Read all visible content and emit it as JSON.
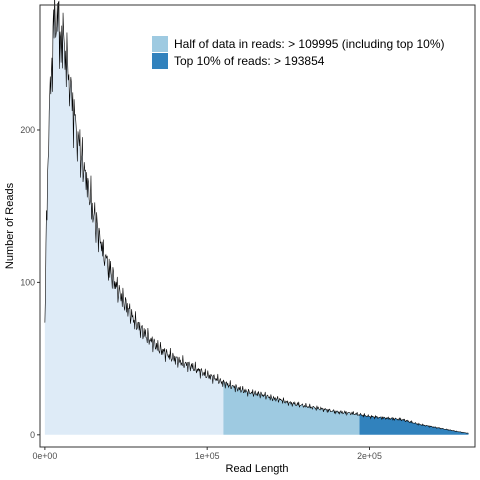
{
  "chart_data": {
    "type": "area",
    "xlabel": "Read Length",
    "ylabel": "Number of Reads",
    "xlim": [
      -3000,
      265000
    ],
    "ylim": [
      -8,
      282
    ],
    "x_ticks": [
      {
        "value": 0,
        "label": "0e+00"
      },
      {
        "value": 100000,
        "label": "1e+05"
      },
      {
        "value": 200000,
        "label": "2e+05"
      }
    ],
    "y_ticks": [
      {
        "value": 0,
        "label": "0"
      },
      {
        "value": 100,
        "label": "100"
      },
      {
        "value": 200,
        "label": "200"
      }
    ],
    "grid": false,
    "legend_position": "top-right",
    "thresholds": {
      "half_data": 109995,
      "top10": 193854
    },
    "regions": [
      {
        "name": "all",
        "from": 0,
        "to": 109995,
        "color": "#deebf7"
      },
      {
        "name": "half",
        "from": 109995,
        "to": 193854,
        "color": "#9ecae1",
        "label": "Half of data in reads: > 109995 (including top 10%)"
      },
      {
        "name": "top10",
        "from": 193854,
        "to": 261000,
        "color": "#3182bd",
        "label": "Top 10% of reads: > 193854"
      }
    ],
    "series": [
      {
        "x": [
          0,
          1000,
          2000,
          3000,
          4000,
          5000,
          6000,
          7000,
          8000,
          9000,
          10000,
          12000,
          14000,
          16000,
          18000,
          20000,
          22000,
          25000,
          28000,
          30000,
          33000,
          36000,
          40000,
          45000,
          50000,
          55000,
          60000,
          65000,
          70000,
          75000,
          80000,
          85000,
          90000,
          95000,
          100000,
          105000,
          110000,
          115000,
          120000,
          125000,
          130000,
          135000,
          140000,
          145000,
          150000,
          160000,
          170000,
          180000,
          190000,
          200000,
          210000,
          220000,
          230000,
          240000,
          250000,
          255000,
          261000
        ],
        "y": [
          70,
          140,
          185,
          215,
          240,
          258,
          272,
          275,
          270,
          265,
          262,
          255,
          240,
          225,
          210,
          195,
          185,
          170,
          155,
          145,
          132,
          120,
          108,
          95,
          85,
          75,
          68,
          62,
          57,
          53,
          50,
          47,
          45,
          42,
          39,
          37,
          34,
          32,
          30,
          28,
          27,
          26,
          24,
          23,
          21,
          19,
          17,
          15,
          14,
          12,
          11,
          10,
          7,
          5,
          3,
          2,
          1
        ]
      }
    ]
  }
}
